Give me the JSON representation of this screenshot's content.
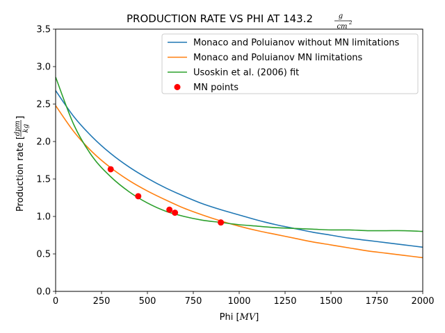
{
  "chart_data": {
    "type": "line",
    "title_main": "PRODUCTION RATE VS PHI AT 143.2",
    "title_unit_num": "g",
    "title_unit_den": "cm",
    "title_unit_exp": "2",
    "xlabel": "Phi [MV]",
    "xlabel_main": "Phi [",
    "xlabel_unit": "MV",
    "xlabel_close": "]",
    "ylabel_main": "Production rate [",
    "ylabel_num": "dpm",
    "ylabel_den": "kg",
    "ylabel_close": "]",
    "xlim": [
      0,
      2000
    ],
    "ylim": [
      0,
      3.5
    ],
    "xticks": [
      0,
      250,
      500,
      750,
      1000,
      1250,
      1500,
      1750,
      2000
    ],
    "xtick_labels": [
      "0",
      "250",
      "500",
      "750",
      "1000",
      "1250",
      "1500",
      "1750",
      "2000"
    ],
    "yticks": [
      0,
      0.5,
      1.0,
      1.5,
      2.0,
      2.5,
      3.0,
      3.5
    ],
    "ytick_labels": [
      "0.0",
      "0.5",
      "1.0",
      "1.5",
      "2.0",
      "2.5",
      "3.0",
      "3.5"
    ],
    "grid": false,
    "legend_position": "top-right",
    "series": [
      {
        "name": "Monaco and Poluianov without MN limitations",
        "color": "#1f77b4",
        "style": "line",
        "x": [
          0,
          100,
          200,
          300,
          400,
          500,
          600,
          700,
          800,
          900,
          1000,
          1100,
          1200,
          1300,
          1400,
          1500,
          1600,
          1700,
          1800,
          1900,
          2000
        ],
        "y": [
          2.68,
          2.33,
          2.06,
          1.84,
          1.66,
          1.51,
          1.38,
          1.27,
          1.17,
          1.09,
          1.02,
          0.95,
          0.89,
          0.84,
          0.79,
          0.75,
          0.71,
          0.68,
          0.65,
          0.62,
          0.59
        ]
      },
      {
        "name": "Monaco and Poluianov MN limitations",
        "color": "#ff7f0e",
        "style": "line",
        "x": [
          0,
          100,
          200,
          300,
          400,
          500,
          600,
          700,
          800,
          900,
          1000,
          1100,
          1200,
          1300,
          1400,
          1500,
          1600,
          1700,
          1800,
          1900,
          2000
        ],
        "y": [
          2.48,
          2.13,
          1.86,
          1.65,
          1.48,
          1.34,
          1.22,
          1.11,
          1.02,
          0.94,
          0.87,
          0.81,
          0.76,
          0.71,
          0.66,
          0.62,
          0.58,
          0.54,
          0.51,
          0.48,
          0.45
        ]
      },
      {
        "name": "Usoskin et al. (2006) fit",
        "color": "#2ca02c",
        "style": "line",
        "x": [
          0,
          100,
          200,
          300,
          400,
          500,
          600,
          700,
          800,
          900,
          1000,
          1100,
          1200,
          1300,
          1400,
          1500,
          1600,
          1700,
          1800,
          1900,
          2000
        ],
        "y": [
          2.86,
          2.22,
          1.8,
          1.53,
          1.33,
          1.18,
          1.07,
          1.0,
          0.95,
          0.92,
          0.89,
          0.87,
          0.85,
          0.84,
          0.83,
          0.82,
          0.82,
          0.81,
          0.81,
          0.81,
          0.8
        ]
      },
      {
        "name": "MN points",
        "color": "#ff0000",
        "style": "points",
        "x": [
          300,
          450,
          620,
          650,
          900
        ],
        "y": [
          1.63,
          1.27,
          1.09,
          1.05,
          0.92
        ]
      }
    ]
  }
}
